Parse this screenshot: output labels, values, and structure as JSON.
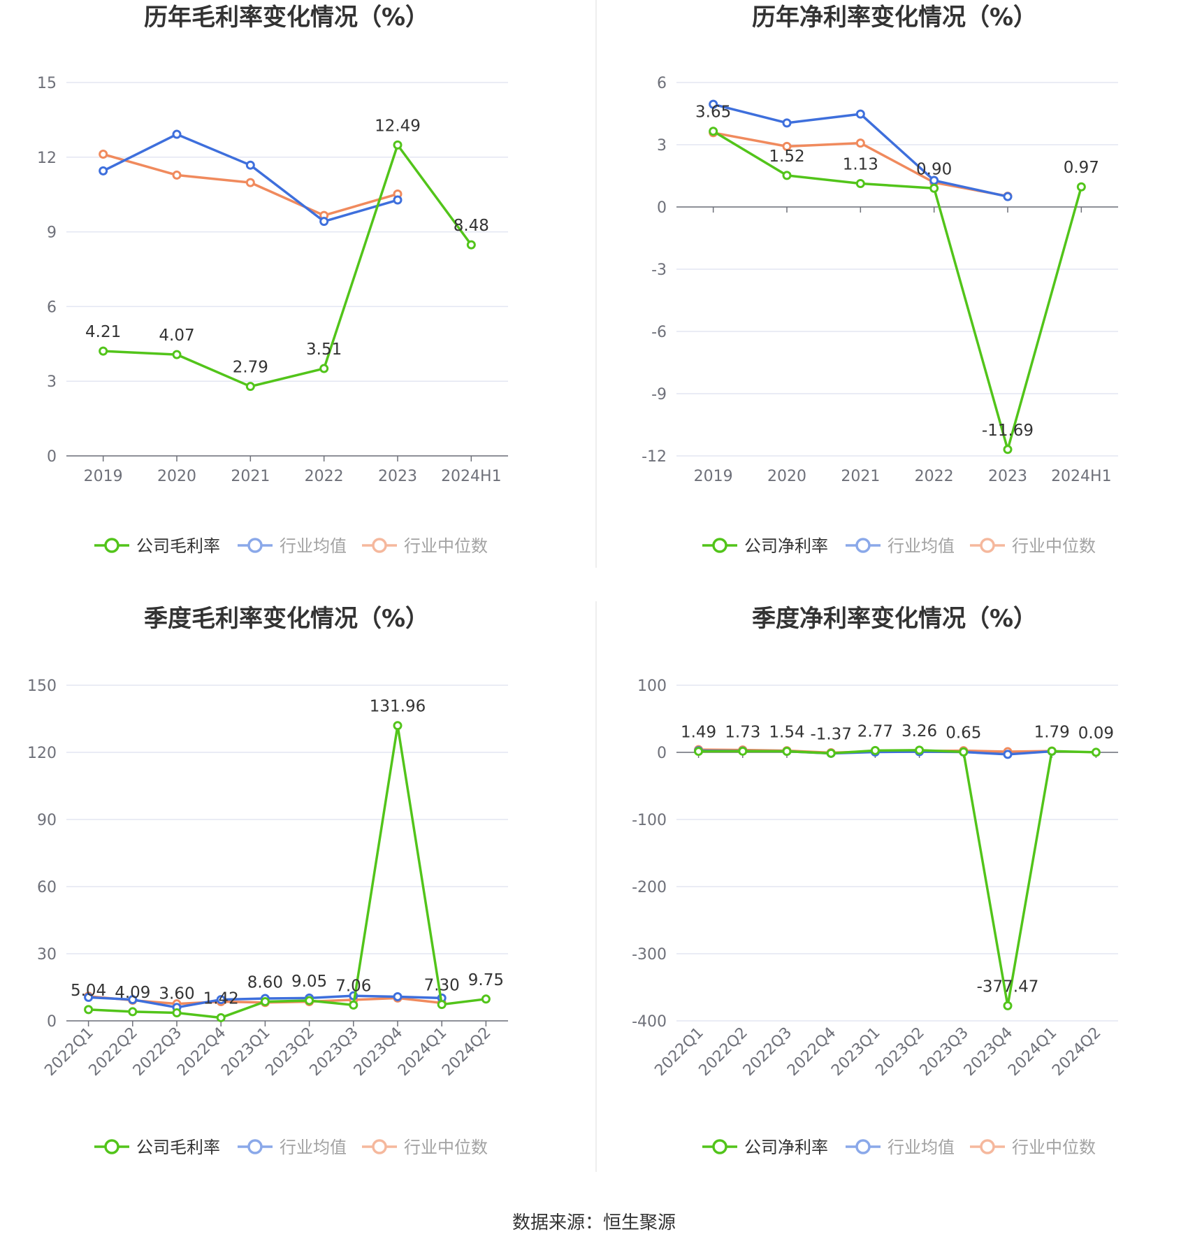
{
  "colors": {
    "company": "#52c41a",
    "avg": "#3e6fdc",
    "median": "#f08a5d",
    "grid": "#e3e6f2",
    "axis": "#6e7079"
  },
  "legend_icon": "circle-line-icon",
  "source": "数据来源：恒生聚源",
  "chart_data": [
    {
      "type": "line",
      "title": "历年毛利率变化情况（%）",
      "categories": [
        "2019",
        "2020",
        "2021",
        "2022",
        "2023",
        "2024H1"
      ],
      "ylim": [
        0,
        15
      ],
      "yticks": [
        0,
        3,
        6,
        9,
        12,
        15
      ],
      "yticklabels": [
        "0",
        "3",
        "6",
        "9",
        "12",
        "15"
      ],
      "grid": true,
      "legend_position": "bottom",
      "rotate_x_labels": false,
      "series": [
        {
          "name": "公司毛利率",
          "key": "company",
          "values": [
            4.21,
            4.07,
            2.79,
            3.51,
            12.49,
            8.48
          ],
          "labels": [
            "4.21",
            "4.07",
            "2.79",
            "3.51",
            "12.49",
            "8.48"
          ]
        },
        {
          "name": "行业均值",
          "key": "avg",
          "values": [
            11.45,
            12.92,
            11.68,
            9.42,
            10.28,
            null
          ]
        },
        {
          "name": "行业中位数",
          "key": "median",
          "values": [
            12.12,
            11.28,
            10.98,
            9.66,
            10.52,
            null
          ]
        }
      ]
    },
    {
      "type": "line",
      "title": "历年净利率变化情况（%）",
      "categories": [
        "2019",
        "2020",
        "2021",
        "2022",
        "2023",
        "2024H1"
      ],
      "ylim": [
        -12,
        6
      ],
      "yticks": [
        -12,
        -9,
        -6,
        -3,
        0,
        3,
        6
      ],
      "yticklabels": [
        "-12",
        "-9",
        "-6",
        "-3",
        "0",
        "3",
        "6"
      ],
      "grid": true,
      "legend_position": "bottom",
      "rotate_x_labels": false,
      "series": [
        {
          "name": "公司净利率",
          "key": "company",
          "values": [
            3.65,
            1.52,
            1.13,
            0.9,
            -11.69,
            0.97
          ],
          "labels": [
            "3.65",
            "1.52",
            "1.13",
            "0.90",
            "-11.69",
            "0.97"
          ]
        },
        {
          "name": "行业均值",
          "key": "avg",
          "values": [
            4.95,
            4.05,
            4.48,
            1.28,
            0.5,
            null
          ]
        },
        {
          "name": "行业中位数",
          "key": "median",
          "values": [
            3.58,
            2.92,
            3.08,
            1.18,
            0.52,
            null
          ]
        }
      ]
    },
    {
      "type": "line",
      "title": "季度毛利率变化情况（%）",
      "categories": [
        "2022Q1",
        "2022Q2",
        "2022Q3",
        "2022Q4",
        "2023Q1",
        "2023Q2",
        "2023Q3",
        "2023Q4",
        "2024Q1",
        "2024Q2"
      ],
      "ylim": [
        0,
        150
      ],
      "yticks": [
        0,
        30,
        60,
        90,
        120,
        150
      ],
      "yticklabels": [
        "0",
        "30",
        "60",
        "90",
        "120",
        "150"
      ],
      "grid": true,
      "legend_position": "bottom",
      "rotate_x_labels": true,
      "series": [
        {
          "name": "公司毛利率",
          "key": "company",
          "values": [
            5.04,
            4.09,
            3.6,
            1.42,
            8.6,
            9.05,
            7.06,
            131.96,
            7.3,
            9.75
          ],
          "labels": [
            "5.04",
            "4.09",
            "3.60",
            "1.42",
            "8.60",
            "9.05",
            "7.06",
            "131.96",
            "7.30",
            "9.75"
          ]
        },
        {
          "name": "行业均值",
          "key": "avg",
          "values": [
            10.5,
            9.5,
            6.0,
            9.5,
            10.0,
            10.2,
            11.2,
            10.8,
            10.2,
            null
          ]
        },
        {
          "name": "行业中位数",
          "key": "median",
          "values": [
            11.0,
            9.2,
            7.6,
            8.6,
            8.2,
            8.6,
            9.4,
            10.2,
            8.0,
            null
          ]
        }
      ]
    },
    {
      "type": "line",
      "title": "季度净利率变化情况（%）",
      "categories": [
        "2022Q1",
        "2022Q2",
        "2022Q3",
        "2022Q4",
        "2023Q1",
        "2023Q2",
        "2023Q3",
        "2023Q4",
        "2024Q1",
        "2024Q2"
      ],
      "ylim": [
        -400,
        100
      ],
      "yticks": [
        -400,
        -300,
        -200,
        -100,
        0,
        100
      ],
      "yticklabels": [
        "-400",
        "-300",
        "-200",
        "-100",
        "0",
        "100"
      ],
      "grid": true,
      "legend_position": "bottom",
      "rotate_x_labels": true,
      "series": [
        {
          "name": "公司净利率",
          "key": "company",
          "values": [
            1.49,
            1.73,
            1.54,
            -1.37,
            2.77,
            3.26,
            0.65,
            -377.47,
            1.79,
            0.09
          ],
          "labels": [
            "1.49",
            "1.73",
            "1.54",
            "-1.37",
            "2.77",
            "3.26",
            "0.65",
            "-377.47",
            "1.79",
            "0.09"
          ]
        },
        {
          "name": "行业均值",
          "key": "avg",
          "values": [
            2.5,
            2.0,
            1.5,
            -1.5,
            0.5,
            1.0,
            0.5,
            -3.0,
            1.5,
            null
          ]
        },
        {
          "name": "行业中位数",
          "key": "median",
          "values": [
            4.0,
            3.5,
            2.5,
            -0.5,
            1.5,
            2.0,
            2.5,
            1.0,
            2.0,
            null
          ]
        }
      ]
    }
  ]
}
